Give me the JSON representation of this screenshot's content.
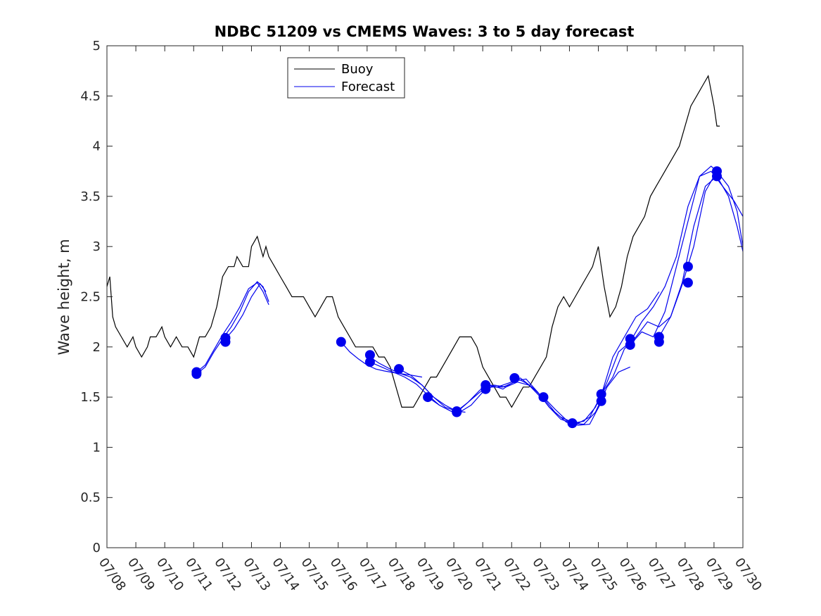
{
  "chart_data": {
    "type": "line",
    "title": "NDBC 51209 vs CMEMS Waves: 3 to 5 day forecast",
    "xlabel": "",
    "ylabel": "Wave height, m",
    "x_tick_labels": [
      "07/08",
      "07/09",
      "07/10",
      "07/11",
      "07/12",
      "07/13",
      "07/14",
      "07/15",
      "07/16",
      "07/17",
      "07/18",
      "07/19",
      "07/20",
      "07/21",
      "07/22",
      "07/23",
      "07/24",
      "07/25",
      "07/26",
      "07/27",
      "07/28",
      "07/29",
      "07/30"
    ],
    "y_tick_labels": [
      "0",
      "0.5",
      "1",
      "1.5",
      "2",
      "2.5",
      "3",
      "3.5",
      "4",
      "4.5",
      "5"
    ],
    "xlim": [
      "07/08 00:00",
      "07/30 00:00"
    ],
    "ylim": [
      0,
      5
    ],
    "grid": false,
    "legend_position": "top-left",
    "series": [
      {
        "name": "Buoy",
        "color": "#000000",
        "x_day_offset_from_0708": [
          0,
          0.1,
          0.2,
          0.3,
          0.5,
          0.7,
          0.9,
          1.0,
          1.2,
          1.4,
          1.5,
          1.7,
          1.9,
          2.0,
          2.2,
          2.4,
          2.6,
          2.8,
          3.0,
          3.1,
          3.2,
          3.4,
          3.6,
          3.8,
          4.0,
          4.2,
          4.4,
          4.5,
          4.7,
          4.9,
          5.0,
          5.2,
          5.4,
          5.5,
          5.6,
          5.8,
          6.0,
          6.2,
          6.4,
          6.6,
          6.8,
          7.0,
          7.2,
          7.4,
          7.6,
          7.8,
          8.0,
          8.2,
          8.4,
          8.6,
          8.8,
          9.0,
          9.2,
          9.4,
          9.6,
          9.8,
          10.0,
          10.2,
          10.4,
          10.6,
          10.8,
          11.0,
          11.2,
          11.4,
          11.6,
          11.8,
          12.0,
          12.2,
          12.4,
          12.6,
          12.8,
          13.0,
          13.2,
          13.4,
          13.6,
          13.8,
          14.0,
          14.2,
          14.4,
          14.6,
          14.8,
          15.0,
          15.2,
          15.4,
          15.6,
          15.8,
          16.0,
          16.2,
          16.4,
          16.6,
          16.8,
          17.0,
          17.2,
          17.4,
          17.6,
          17.8,
          18.0,
          18.2,
          18.4,
          18.6,
          18.8,
          19.0,
          19.2,
          19.4,
          19.6,
          19.8,
          20.0,
          20.2,
          20.4,
          20.6,
          20.8,
          21.0,
          21.1,
          21.2
        ],
        "values": [
          2.6,
          2.7,
          2.3,
          2.2,
          2.1,
          2.0,
          2.1,
          2.0,
          1.9,
          2.0,
          2.1,
          2.1,
          2.2,
          2.1,
          2.0,
          2.1,
          2.0,
          2.0,
          1.9,
          2.0,
          2.1,
          2.1,
          2.2,
          2.4,
          2.7,
          2.8,
          2.8,
          2.9,
          2.8,
          2.8,
          3.0,
          3.1,
          2.9,
          3.0,
          2.9,
          2.8,
          2.7,
          2.6,
          2.5,
          2.5,
          2.5,
          2.4,
          2.3,
          2.4,
          2.5,
          2.5,
          2.3,
          2.2,
          2.1,
          2.0,
          2.0,
          2.0,
          2.0,
          1.9,
          1.9,
          1.8,
          1.6,
          1.4,
          1.4,
          1.4,
          1.5,
          1.6,
          1.7,
          1.7,
          1.8,
          1.9,
          2.0,
          2.1,
          2.1,
          2.1,
          2.0,
          1.8,
          1.7,
          1.6,
          1.5,
          1.5,
          1.4,
          1.5,
          1.6,
          1.6,
          1.7,
          1.8,
          1.9,
          2.2,
          2.4,
          2.5,
          2.4,
          2.5,
          2.6,
          2.7,
          2.8,
          3.0,
          2.6,
          2.3,
          2.4,
          2.6,
          2.9,
          3.1,
          3.2,
          3.3,
          3.5,
          3.6,
          3.7,
          3.8,
          3.9,
          4.0,
          4.2,
          4.4,
          4.5,
          4.6,
          4.7,
          4.4,
          4.2,
          4.2
        ]
      },
      {
        "name": "Forecast",
        "color": "#0000ee",
        "segments": [
          {
            "x": [
              3.1,
              3.4,
              3.7,
              4.0,
              4.3,
              4.6,
              4.9,
              5.2,
              5.4,
              5.6
            ],
            "values": [
              1.73,
              1.8,
              1.95,
              2.08,
              2.2,
              2.35,
              2.55,
              2.65,
              2.6,
              2.45
            ]
          },
          {
            "x": [
              3.1,
              3.4,
              3.7,
              4.0,
              4.3,
              4.6,
              4.9,
              5.2,
              5.4,
              5.6
            ],
            "values": [
              1.75,
              1.82,
              1.97,
              2.12,
              2.25,
              2.4,
              2.58,
              2.64,
              2.55,
              2.42
            ]
          },
          {
            "x": [
              4.1,
              4.4,
              4.7,
              5.0,
              5.3,
              5.5
            ],
            "values": [
              2.08,
              2.18,
              2.32,
              2.5,
              2.63,
              2.55
            ]
          },
          {
            "x": [
              8.1,
              8.4,
              8.7,
              9.0,
              9.3,
              9.6,
              10.0,
              10.5,
              10.9
            ],
            "values": [
              2.05,
              1.95,
              1.88,
              1.82,
              1.78,
              1.76,
              1.74,
              1.72,
              1.7
            ]
          },
          {
            "x": [
              9.1,
              9.4,
              9.8,
              10.1,
              10.5,
              10.9,
              11.3,
              11.7,
              12.1,
              12.4
            ],
            "values": [
              1.9,
              1.84,
              1.78,
              1.74,
              1.7,
              1.62,
              1.5,
              1.42,
              1.36,
              1.35
            ]
          },
          {
            "x": [
              9.1,
              9.5,
              9.9,
              10.3,
              10.7,
              11.1,
              11.5,
              11.9,
              12.2
            ],
            "values": [
              1.85,
              1.8,
              1.75,
              1.7,
              1.63,
              1.52,
              1.42,
              1.36,
              1.34
            ]
          },
          {
            "x": [
              10.1,
              10.5,
              10.9,
              11.3,
              11.7,
              12.1,
              12.5,
              12.9,
              13.3,
              13.7,
              14.1
            ],
            "values": [
              1.78,
              1.72,
              1.62,
              1.5,
              1.4,
              1.36,
              1.45,
              1.55,
              1.6,
              1.6,
              1.65
            ]
          },
          {
            "x": [
              11.1,
              11.5,
              11.9,
              12.2,
              12.6,
              13.0,
              13.4,
              13.8,
              14.2,
              14.6,
              15.0
            ],
            "values": [
              1.5,
              1.42,
              1.36,
              1.35,
              1.42,
              1.55,
              1.62,
              1.6,
              1.65,
              1.62,
              1.5
            ]
          },
          {
            "x": [
              12.1,
              12.5,
              12.9,
              13.3,
              13.7,
              14.1,
              14.5,
              14.9,
              15.3,
              15.7,
              16.1
            ],
            "values": [
              1.35,
              1.45,
              1.57,
              1.62,
              1.58,
              1.66,
              1.68,
              1.55,
              1.4,
              1.3,
              1.25
            ]
          },
          {
            "x": [
              13.1,
              13.5,
              13.9,
              14.3,
              14.7,
              15.1,
              15.5,
              15.9,
              16.3,
              16.7,
              17.1
            ],
            "values": [
              1.62,
              1.6,
              1.64,
              1.69,
              1.6,
              1.49,
              1.35,
              1.25,
              1.22,
              1.23,
              1.45
            ]
          },
          {
            "x": [
              14.1,
              14.5,
              14.9,
              15.3,
              15.7,
              16.1,
              16.5,
              16.9,
              17.3,
              17.7,
              18.1
            ],
            "values": [
              1.7,
              1.64,
              1.55,
              1.4,
              1.28,
              1.24,
              1.23,
              1.35,
              1.6,
              1.75,
              1.8
            ]
          },
          {
            "x": [
              15.1,
              15.5,
              15.9,
              16.3,
              16.7,
              17.1,
              17.5,
              17.9,
              18.3,
              18.7,
              19.1
            ],
            "values": [
              1.5,
              1.38,
              1.27,
              1.24,
              1.3,
              1.52,
              1.9,
              2.1,
              2.3,
              2.38,
              2.55
            ]
          },
          {
            "x": [
              16.1,
              16.5,
              16.9,
              17.3,
              17.7,
              18.1,
              18.5,
              18.9,
              19.3,
              19.7,
              20.1,
              20.5,
              20.9,
              21.1
            ],
            "values": [
              1.24,
              1.26,
              1.4,
              1.65,
              1.95,
              2.05,
              2.25,
              2.4,
              2.6,
              2.9,
              3.4,
              3.7,
              3.8,
              3.75
            ]
          },
          {
            "x": [
              17.1,
              17.5,
              17.9,
              18.3,
              18.7,
              19.1,
              19.5,
              19.9,
              20.3,
              20.7,
              21.1,
              21.5,
              21.8,
              22.0
            ],
            "values": [
              1.53,
              1.7,
              1.98,
              2.1,
              2.25,
              2.2,
              2.3,
              2.62,
              3.0,
              3.55,
              3.75,
              3.6,
              3.35,
              3.0
            ]
          },
          {
            "x": [
              18.1,
              18.5,
              18.9,
              19.3,
              19.7,
              20.1,
              20.5,
              20.9,
              21.3,
              21.7,
              22.0
            ],
            "values": [
              2.02,
              2.15,
              2.1,
              2.35,
              2.8,
              3.25,
              3.7,
              3.75,
              3.6,
              3.45,
              3.3
            ]
          },
          {
            "x": [
              19.1,
              19.5,
              19.9,
              20.3,
              20.7,
              21.1,
              21.5,
              21.8,
              22.0
            ],
            "values": [
              2.1,
              2.3,
              2.64,
              3.2,
              3.6,
              3.7,
              3.5,
              3.2,
              2.95
            ]
          }
        ],
        "markers_x": [
          3.1,
          3.1,
          4.1,
          4.1,
          8.1,
          9.1,
          9.1,
          10.1,
          11.1,
          12.1,
          12.1,
          13.1,
          13.1,
          14.1,
          15.1,
          16.1,
          17.1,
          17.1,
          18.1,
          18.1,
          19.1,
          19.1,
          20.1,
          20.1,
          21.1,
          21.1
        ],
        "markers_values": [
          1.73,
          1.75,
          2.05,
          2.09,
          2.05,
          1.92,
          1.85,
          1.78,
          1.5,
          1.36,
          1.35,
          1.62,
          1.58,
          1.69,
          1.5,
          1.24,
          1.46,
          1.53,
          2.02,
          2.08,
          2.05,
          2.1,
          2.64,
          2.8,
          3.7,
          3.75
        ]
      }
    ]
  }
}
